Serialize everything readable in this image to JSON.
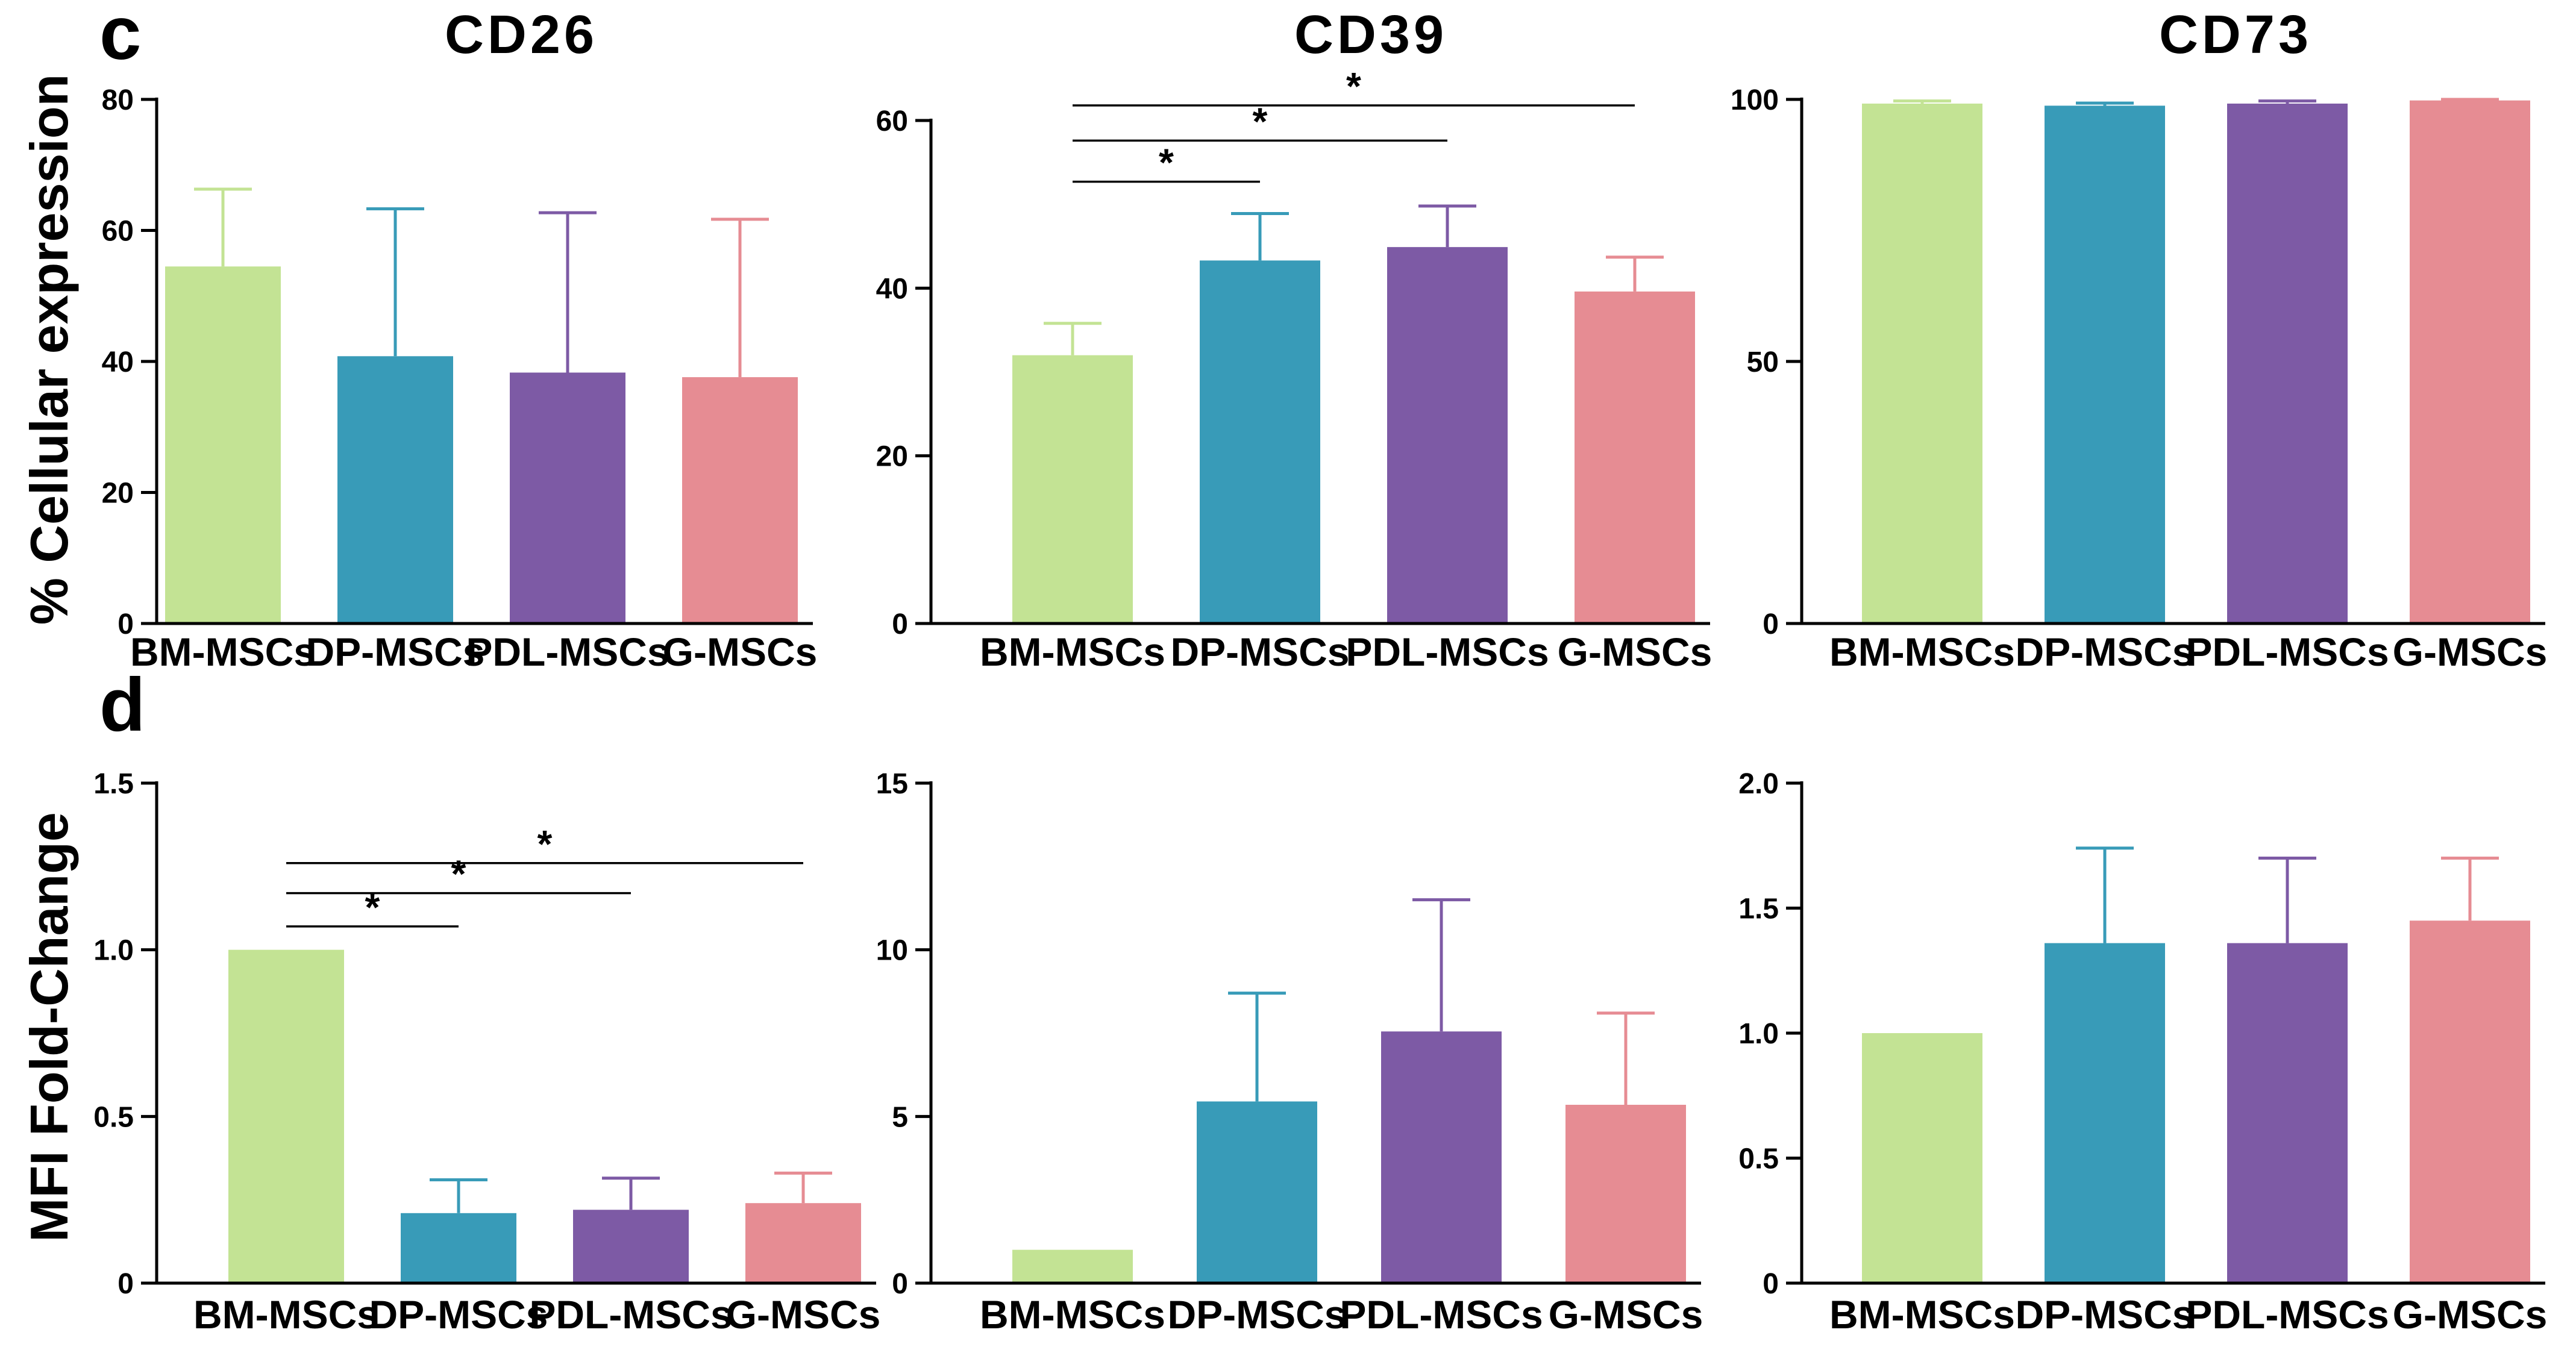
{
  "colors": {
    "BM-MSCs": "#c3e394",
    "DP-MSCs": "#389bb8",
    "PDL-MSCs": "#7d5aa5",
    "G-MSCs": "#e68c93"
  },
  "row_labels": {
    "row1": "c",
    "row2": "d"
  },
  "y_labels": {
    "row1": "% Cellular expression",
    "row2": "MFI Fold-Change"
  },
  "titles": [
    "CD26",
    "CD39",
    "CD73"
  ],
  "chart_data": [
    {
      "id": "c-cd26",
      "type": "bar",
      "title": "CD26",
      "ylabel": "% Cellular expression",
      "categories": [
        "BM-MSCs",
        "DP-MSCs",
        "PDL-MSCs",
        "G-MSCs"
      ],
      "values": [
        54.5,
        40.8,
        38.3,
        37.6
      ],
      "errors": [
        11.8,
        22.5,
        24.4,
        24.1
      ],
      "ylim": [
        0,
        80
      ],
      "yticks": [
        0,
        20,
        40,
        60,
        80
      ],
      "ytick_labels": [
        "0",
        "20",
        "40",
        "60",
        "80"
      ],
      "significance": []
    },
    {
      "id": "c-cd39",
      "type": "bar",
      "title": "CD39",
      "ylabel": "",
      "categories": [
        "BM-MSCs",
        "DP-MSCs",
        "PDL-MSCs",
        "G-MSCs"
      ],
      "values": [
        32.0,
        43.3,
        44.9,
        39.6
      ],
      "errors": [
        3.8,
        5.6,
        4.9,
        4.1
      ],
      "ylim": [
        0,
        60
      ],
      "yticks": [
        0,
        20,
        40,
        60
      ],
      "ytick_labels": [
        "0",
        "20",
        "40",
        "60"
      ],
      "significance": [
        {
          "from": 0,
          "to": 1,
          "label": "*",
          "y": 52.7
        },
        {
          "from": 0,
          "to": 2,
          "label": "*",
          "y": 57.6
        },
        {
          "from": 0,
          "to": 3,
          "label": "*",
          "y": 61.8
        }
      ]
    },
    {
      "id": "c-cd73",
      "type": "bar",
      "title": "CD73",
      "ylabel": "",
      "categories": [
        "BM-MSCs",
        "DP-MSCs",
        "PDL-MSCs",
        "G-MSCs"
      ],
      "values": [
        99.2,
        98.8,
        99.2,
        99.8
      ],
      "errors": [
        0.5,
        0.5,
        0.5,
        0.2
      ],
      "ylim": [
        0,
        100
      ],
      "yticks": [
        0,
        50,
        100
      ],
      "ytick_labels": [
        "0",
        "50",
        "100"
      ],
      "significance": []
    },
    {
      "id": "d-cd26",
      "type": "bar",
      "title": "",
      "ylabel": "MFI Fold-Change",
      "categories": [
        "BM-MSCs",
        "DP-MSCs",
        "PDL-MSCs",
        "G-MSCs"
      ],
      "values": [
        1.0,
        0.21,
        0.22,
        0.24
      ],
      "errors": [
        0.0,
        0.1,
        0.095,
        0.09
      ],
      "ylim": [
        0,
        1.5
      ],
      "yticks": [
        0,
        0.5,
        1.0,
        1.5
      ],
      "ytick_labels": [
        "0",
        "0.5",
        "1.0",
        "1.5"
      ],
      "significance": [
        {
          "from": 0,
          "to": 1,
          "label": "*",
          "y": 1.07
        },
        {
          "from": 0,
          "to": 2,
          "label": "*",
          "y": 1.17
        },
        {
          "from": 0,
          "to": 3,
          "label": "*",
          "y": 1.26
        }
      ]
    },
    {
      "id": "d-cd39",
      "type": "bar",
      "title": "",
      "ylabel": "",
      "categories": [
        "BM-MSCs",
        "DP-MSCs",
        "PDL-MSCs",
        "G-MSCs"
      ],
      "values": [
        1.0,
        5.45,
        7.55,
        5.35
      ],
      "errors": [
        0.0,
        3.25,
        3.95,
        2.75
      ],
      "ylim": [
        0,
        15
      ],
      "yticks": [
        0,
        5,
        10,
        15
      ],
      "ytick_labels": [
        "0",
        "5",
        "10",
        "15"
      ],
      "significance": []
    },
    {
      "id": "d-cd73",
      "type": "bar",
      "title": "",
      "ylabel": "",
      "categories": [
        "BM-MSCs",
        "DP-MSCs",
        "PDL-MSCs",
        "G-MSCs"
      ],
      "values": [
        1.0,
        1.36,
        1.36,
        1.45
      ],
      "errors": [
        0.0,
        0.38,
        0.34,
        0.25
      ],
      "ylim": [
        0,
        2.0
      ],
      "yticks": [
        0,
        0.5,
        1.0,
        1.5,
        2.0
      ],
      "ytick_labels": [
        "0",
        "0.5",
        "1.0",
        "1.5",
        "2.0"
      ],
      "significance": []
    }
  ]
}
